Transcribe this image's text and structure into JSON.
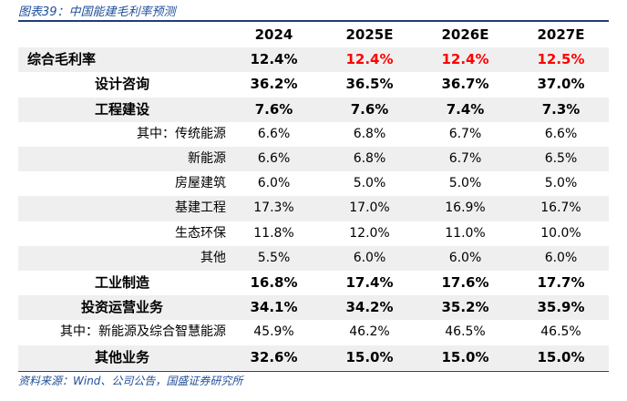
{
  "title": "图表39：中国能建毛利率预测",
  "source": "资料来源：Wind、公司公告，国盛证券研究所",
  "header": [
    "",
    "2024",
    "2025E",
    "2026E",
    "2027E"
  ],
  "rows": [
    {
      "label": "综合毛利率",
      "values": [
        "12.4%",
        "12.4%",
        "12.4%",
        "12.5%"
      ]
    },
    {
      "label": "设计咨询",
      "values": [
        "36.2%",
        "36.5%",
        "36.7%",
        "37.0%"
      ]
    },
    {
      "label": "工程建设",
      "values": [
        "7.6%",
        "7.6%",
        "7.4%",
        "7.3%"
      ]
    },
    {
      "label": "其中：传统能源",
      "values": [
        "6.6%",
        "6.8%",
        "6.7%",
        "6.6%"
      ]
    },
    {
      "label": "新能源",
      "values": [
        "6.6%",
        "6.8%",
        "6.7%",
        "6.5%"
      ]
    },
    {
      "label": "房屋建筑",
      "values": [
        "6.0%",
        "5.0%",
        "5.0%",
        "5.0%"
      ]
    },
    {
      "label": "基建工程",
      "values": [
        "17.3%",
        "17.0%",
        "16.9%",
        "16.7%"
      ]
    },
    {
      "label": "生态环保",
      "values": [
        "11.8%",
        "12.0%",
        "11.0%",
        "10.0%"
      ]
    },
    {
      "label": "其他",
      "values": [
        "5.5%",
        "6.0%",
        "6.0%",
        "6.0%"
      ]
    },
    {
      "label": "工业制造",
      "values": [
        "16.8%",
        "17.4%",
        "17.6%",
        "17.7%"
      ]
    },
    {
      "label": "投资运营业务",
      "values": [
        "34.1%",
        "34.2%",
        "35.2%",
        "35.9%"
      ]
    },
    {
      "label": "其中：新能源及综合智慧能源",
      "values": [
        "45.9%",
        "46.2%",
        "46.5%",
        "46.5%"
      ]
    },
    {
      "label": "其他业务",
      "values": [
        "32.6%",
        "15.0%",
        "15.0%",
        "15.0%"
      ]
    }
  ],
  "colors": {
    "accent": "#1f4e9a",
    "forecast_highlight": "#ff0000",
    "row_shade": "#efefef"
  }
}
